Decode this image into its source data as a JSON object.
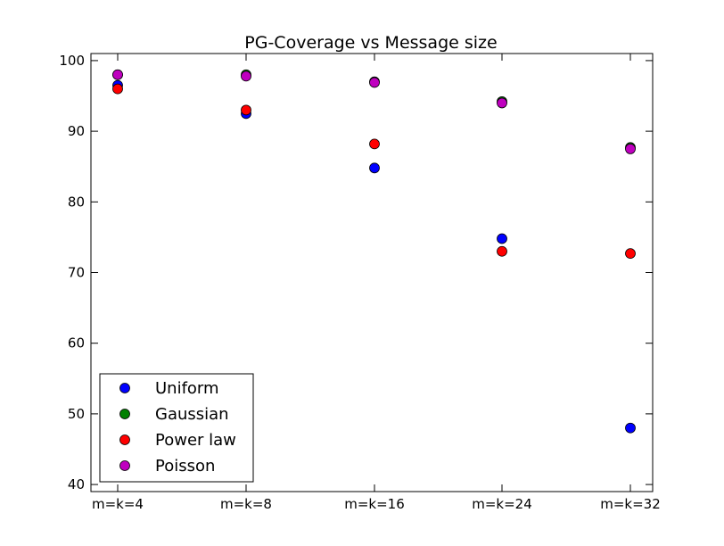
{
  "chart_data": {
    "type": "scatter",
    "title": "PG-Coverage vs Message size",
    "xlabel": "",
    "ylabel": "",
    "categories": [
      "m=k=4",
      "m=k=8",
      "m=k=16",
      "m=k=24",
      "m=k=32"
    ],
    "ylim": [
      39,
      101
    ],
    "yticks": [
      40,
      50,
      60,
      70,
      80,
      90,
      100
    ],
    "grid": false,
    "legend": {
      "position": "lower-left"
    },
    "series": [
      {
        "name": "Uniform",
        "color": "#0000ff",
        "values": [
          96.5,
          92.5,
          84.8,
          74.8,
          48.0
        ]
      },
      {
        "name": "Gaussian",
        "color": "#008000",
        "values": [
          98.0,
          98.0,
          97.0,
          94.2,
          87.7
        ]
      },
      {
        "name": "Power law",
        "color": "#ff0000",
        "values": [
          96.0,
          93.0,
          88.2,
          73.0,
          72.7
        ]
      },
      {
        "name": "Poisson",
        "color": "#bf00bf",
        "values": [
          98.0,
          97.8,
          96.9,
          94.0,
          87.5
        ]
      }
    ]
  }
}
